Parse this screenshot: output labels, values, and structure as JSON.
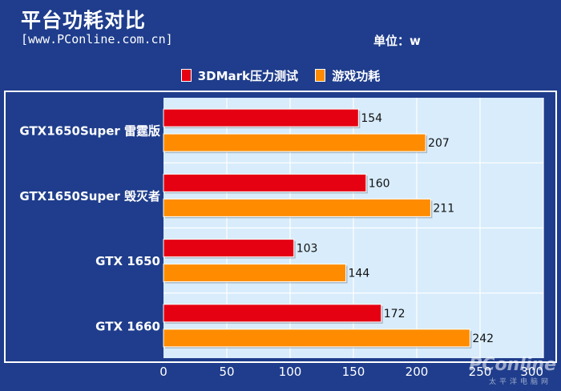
{
  "header": {
    "title": "平台功耗对比",
    "source": "[www.PConline.com.cn]",
    "unit": "单位：w"
  },
  "watermark": {
    "brand": "PConline",
    "sub": "太平洋电脑网"
  },
  "colors": {
    "background": "#1f3d8c",
    "plot": "#d8ecfb",
    "series1": "#e50012",
    "series2": "#ff8c00"
  },
  "chart_data": {
    "type": "bar",
    "orientation": "horizontal",
    "categories": [
      "GTX1650Super 雷霆版",
      "GTX1650Super 毁灭者",
      "GTX 1650",
      "GTX 1660"
    ],
    "series": [
      {
        "name": "3DMark压力测试",
        "values": [
          154,
          160,
          103,
          172
        ],
        "color": "#e50012"
      },
      {
        "name": "游戏功耗",
        "values": [
          207,
          211,
          144,
          242
        ],
        "color": "#ff8c00"
      }
    ],
    "xlim": [
      0,
      300
    ],
    "ticks": [
      0,
      50,
      100,
      150,
      200,
      250,
      300
    ],
    "legend": "top-center",
    "grid": true
  }
}
